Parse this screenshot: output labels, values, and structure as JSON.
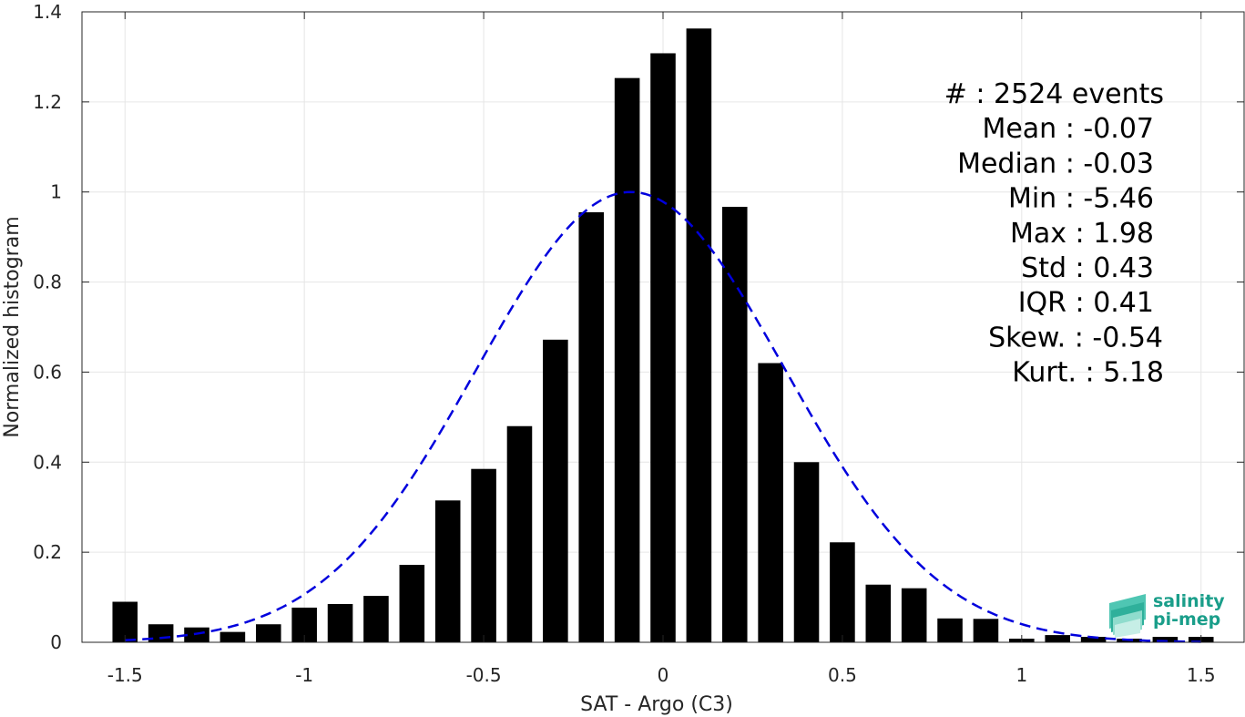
{
  "chart_data": {
    "type": "bar",
    "xlabel": "SAT - Argo (C3)",
    "ylabel": "Normalized histogram",
    "xlim": [
      -1.62,
      1.62
    ],
    "ylim": [
      0,
      1.4
    ],
    "xticks": [
      -1.5,
      -1,
      -0.5,
      0,
      0.5,
      1,
      1.5
    ],
    "xtick_labels": [
      "-1.5",
      "-1",
      "-0.5",
      "0",
      "0.5",
      "1",
      "1.5"
    ],
    "yticks": [
      0,
      0.2,
      0.4,
      0.6,
      0.8,
      1,
      1.2,
      1.4
    ],
    "ytick_labels": [
      "0",
      "0.2",
      "0.4",
      "0.6",
      "0.8",
      "1",
      "1.2",
      "1.4"
    ],
    "grid": true,
    "bar_width": 0.07,
    "bar_color": "#000000",
    "x": [
      -1.5,
      -1.4,
      -1.3,
      -1.2,
      -1.1,
      -1.0,
      -0.9,
      -0.8,
      -0.7,
      -0.6,
      -0.5,
      -0.4,
      -0.3,
      -0.2,
      -0.1,
      0.0,
      0.1,
      0.2,
      0.3,
      0.4,
      0.5,
      0.6,
      0.7,
      0.8,
      0.9,
      1.0,
      1.1,
      1.2,
      1.3,
      1.4,
      1.5
    ],
    "values": [
      0.09,
      0.04,
      0.033,
      0.023,
      0.04,
      0.077,
      0.085,
      0.103,
      0.172,
      0.315,
      0.385,
      0.48,
      0.672,
      0.955,
      1.253,
      1.308,
      1.363,
      0.967,
      0.62,
      0.4,
      0.222,
      0.128,
      0.12,
      0.053,
      0.052,
      0.008,
      0.016,
      0.012,
      0.008,
      0.012,
      0.012
    ],
    "fit_curve": {
      "style": "dashed",
      "color": "#0000dd",
      "mean": -0.09,
      "std": 0.43,
      "peak": 1.0,
      "x_range": [
        -1.5,
        1.5
      ]
    },
    "annotations": [
      "#  : 2524 events",
      "Mean : -0.07",
      "Median : -0.03",
      "Min : -5.46",
      "Max : 1.98",
      "Std : 0.43",
      "IQR : 0.41",
      "Skew. : -0.54",
      "Kurt. : 5.18"
    ]
  },
  "logo": {
    "line1": "salinity",
    "line2": "pi-mep",
    "color": "#1a9e8a"
  }
}
